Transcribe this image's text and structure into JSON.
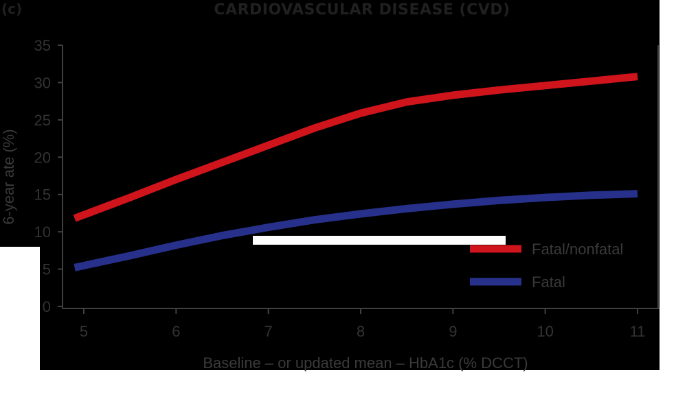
{
  "panel_label": "(c)",
  "colors": {
    "background": "#000000",
    "fatal_nonfatal": "#d0141c",
    "fatal": "#27318b",
    "text": "#333333",
    "highlight": "#ffffff"
  },
  "chart_data": {
    "type": "line",
    "title": "CARDIOVASCULAR DISEASE (CVD)",
    "xlabel": "Baseline – or updated mean – HbA1c (% DCCT)",
    "ylabel": "6-year ate (%)",
    "xlim": [
      4.85,
      11.0
    ],
    "ylim": [
      0,
      35
    ],
    "x_ticks": [
      "5",
      "6",
      "7",
      "8",
      "9",
      "10",
      "11"
    ],
    "y_ticks": [
      "0",
      "5",
      "10",
      "15",
      "20",
      "25",
      "30",
      "35"
    ],
    "legend_position": "bottom-right",
    "series": [
      {
        "name": "Fatal/nonfatal",
        "color": "#d0141c",
        "x": [
          4.9,
          5.5,
          6.0,
          6.5,
          7.0,
          7.5,
          8.0,
          8.5,
          9.0,
          9.5,
          10.0,
          10.5,
          11.0
        ],
        "y": [
          11.8,
          14.6,
          17.0,
          19.3,
          21.6,
          23.9,
          25.9,
          27.4,
          28.3,
          29.0,
          29.6,
          30.2,
          30.8
        ]
      },
      {
        "name": "Fatal",
        "color": "#27318b",
        "x": [
          4.9,
          5.5,
          6.0,
          6.5,
          7.0,
          7.5,
          8.0,
          8.5,
          9.0,
          9.5,
          10.0,
          10.5,
          11.0
        ],
        "y": [
          5.2,
          6.8,
          8.2,
          9.5,
          10.6,
          11.6,
          12.4,
          13.1,
          13.7,
          14.2,
          14.6,
          14.9,
          15.1
        ]
      }
    ]
  }
}
